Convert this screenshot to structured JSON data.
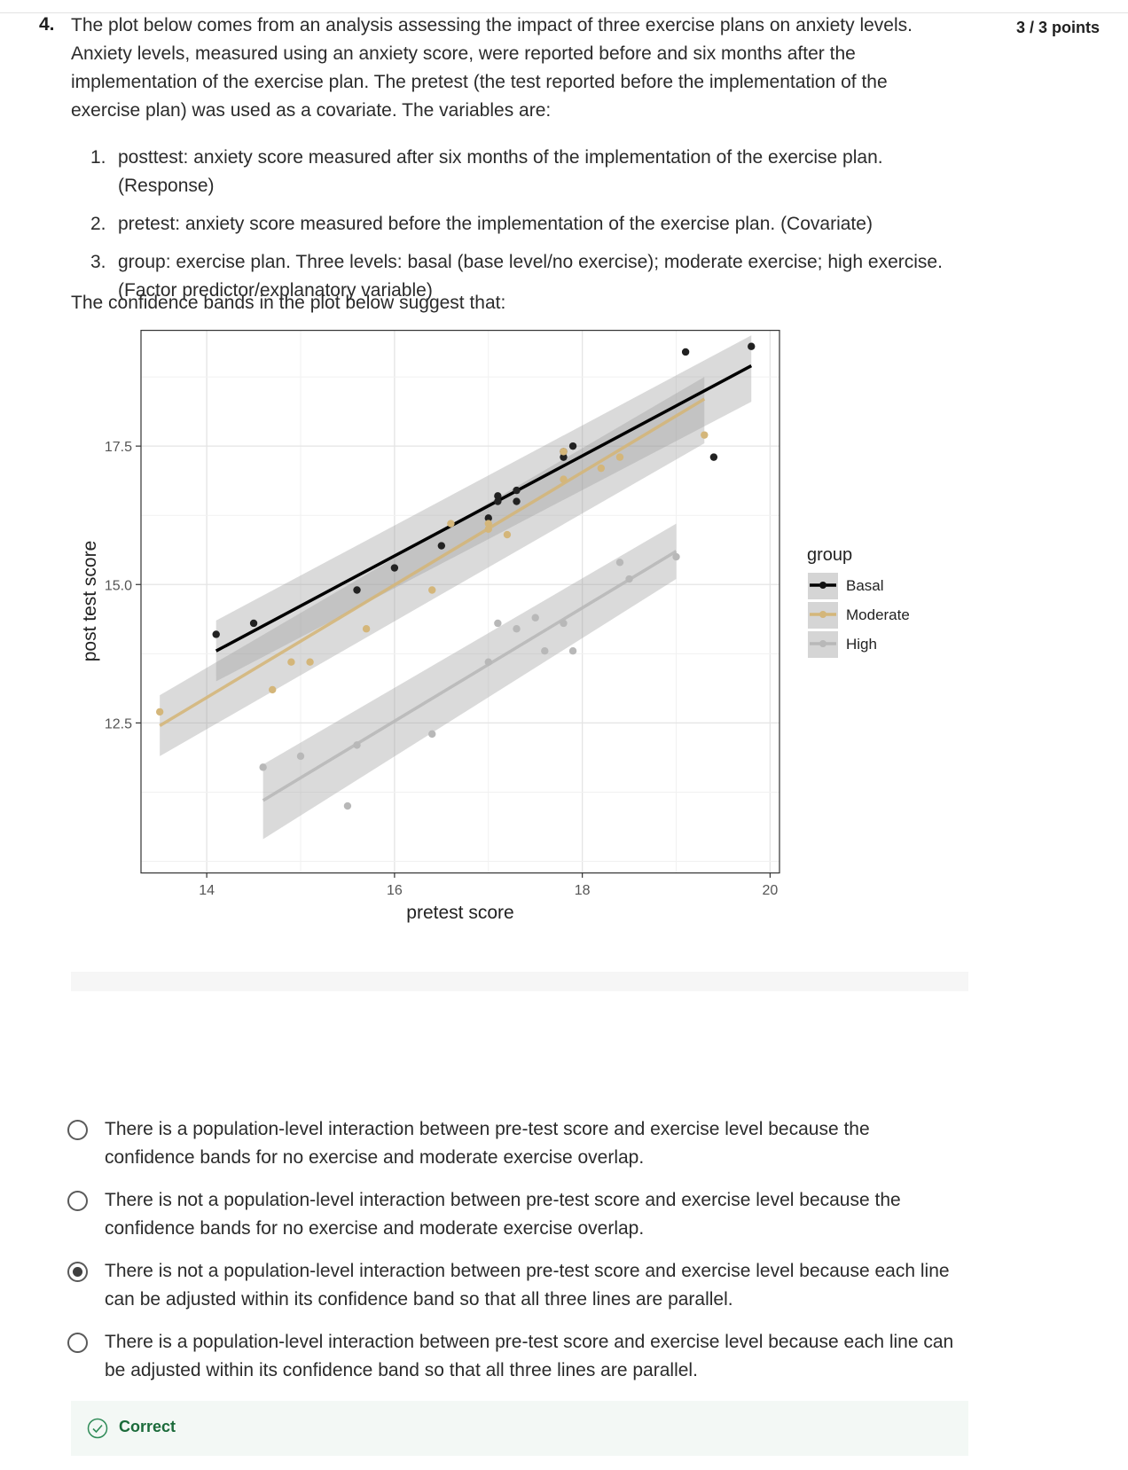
{
  "question": {
    "number": "4.",
    "points": "3 / 3 points",
    "text": "The plot below comes from an analysis assessing the impact of three exercise plans on anxiety levels. Anxiety levels, measured using an anxiety score, were reported before and six months after the implementation of the exercise plan. The pretest (the test reported before the implementation of the exercise plan) was used as a covariate.  The variables are:",
    "variables": [
      {
        "num": "1.",
        "text": "posttest: anxiety score measured after six months of the implementation of the exercise plan. (Response)"
      },
      {
        "num": "2.",
        "text": "pretest: anxiety score measured before the implementation of the exercise plan. (Covariate)"
      },
      {
        "num": "3.",
        "text": "group: exercise plan. Three levels: basal (base level/no exercise); moderate exercise; high exercise. (Factor predictor/explanatory variable)"
      }
    ],
    "prompt": "The confidence bands in the plot below suggest that:"
  },
  "options": [
    {
      "text": "There is a population-level interaction between pre-test score and exercise level because the confidence bands for no exercise and moderate exercise overlap.",
      "selected": false
    },
    {
      "text": "There is not a population-level interaction between pre-test score and exercise level because the confidence bands for no exercise and moderate exercise overlap.",
      "selected": false
    },
    {
      "text": "There is not a population-level interaction between pre-test score and exercise level because each line can be adjusted within its confidence band so that all three lines are parallel.",
      "selected": true
    },
    {
      "text": "There is a population-level interaction between pre-test score and exercise level because each line can be adjusted within its confidence band so that all three lines are parallel.",
      "selected": false
    }
  ],
  "feedback": {
    "label": "Correct",
    "color": "#1b6b3a"
  },
  "chart_data": {
    "type": "scatter",
    "title": "",
    "xlabel": "pretest score",
    "ylabel": "post test score",
    "xlim": [
      13.3,
      20.1
    ],
    "ylim": [
      9.8,
      19.6
    ],
    "xticks": [
      14,
      16,
      18,
      20
    ],
    "yticks": [
      12.5,
      15.0,
      17.5
    ],
    "ytick_labels": [
      "12.5",
      "15.0",
      "17.5"
    ],
    "grid": true,
    "legend": {
      "title": "group",
      "placement": "right"
    },
    "series": [
      {
        "name": "Basal",
        "color": "#000000",
        "points": [
          [
            14.1,
            14.1
          ],
          [
            14.5,
            14.3
          ],
          [
            15.6,
            14.9
          ],
          [
            16.0,
            15.3
          ],
          [
            16.5,
            15.7
          ],
          [
            17.0,
            16.2
          ],
          [
            17.1,
            16.6
          ],
          [
            17.1,
            16.5
          ],
          [
            17.3,
            16.7
          ],
          [
            17.3,
            16.5
          ],
          [
            17.8,
            17.3
          ],
          [
            17.8,
            17.4
          ],
          [
            17.9,
            17.5
          ],
          [
            19.1,
            19.2
          ],
          [
            19.4,
            17.3
          ],
          [
            19.8,
            19.3
          ]
        ],
        "fit": [
          [
            14.1,
            13.8
          ],
          [
            19.8,
            18.95
          ]
        ],
        "band_lower": [
          [
            14.1,
            13.25
          ],
          [
            19.8,
            18.3
          ]
        ],
        "band_upper": [
          [
            14.1,
            14.35
          ],
          [
            19.8,
            19.5
          ]
        ]
      },
      {
        "name": "Moderate",
        "color": "#d4b67a",
        "points": [
          [
            13.5,
            12.7
          ],
          [
            14.7,
            13.1
          ],
          [
            14.9,
            13.6
          ],
          [
            15.1,
            13.6
          ],
          [
            15.7,
            14.2
          ],
          [
            16.4,
            14.9
          ],
          [
            16.6,
            16.1
          ],
          [
            17.0,
            16.1
          ],
          [
            17.0,
            16.0
          ],
          [
            17.2,
            15.9
          ],
          [
            17.8,
            17.4
          ],
          [
            17.8,
            16.9
          ],
          [
            18.2,
            17.1
          ],
          [
            18.4,
            17.3
          ],
          [
            19.3,
            17.7
          ]
        ],
        "fit": [
          [
            13.5,
            12.45
          ],
          [
            19.3,
            18.35
          ]
        ],
        "band_lower": [
          [
            13.5,
            11.9
          ],
          [
            19.3,
            17.55
          ]
        ],
        "band_upper": [
          [
            13.5,
            13.0
          ],
          [
            19.3,
            18.75
          ]
        ]
      },
      {
        "name": "High",
        "color": "#b8b8b8",
        "points": [
          [
            14.6,
            11.7
          ],
          [
            15.0,
            11.9
          ],
          [
            15.5,
            11.0
          ],
          [
            15.6,
            12.1
          ],
          [
            16.4,
            12.3
          ],
          [
            17.0,
            13.6
          ],
          [
            17.1,
            14.3
          ],
          [
            17.3,
            14.2
          ],
          [
            17.5,
            14.4
          ],
          [
            17.6,
            13.8
          ],
          [
            17.8,
            14.3
          ],
          [
            17.9,
            13.8
          ],
          [
            18.4,
            15.4
          ],
          [
            18.5,
            15.1
          ],
          [
            19.0,
            15.5
          ]
        ],
        "fit": [
          [
            14.6,
            11.1
          ],
          [
            19.0,
            15.6
          ]
        ],
        "band_lower": [
          [
            14.6,
            10.4
          ],
          [
            19.0,
            15.1
          ]
        ],
        "band_upper": [
          [
            14.6,
            11.75
          ],
          [
            19.0,
            16.1
          ]
        ]
      }
    ]
  }
}
